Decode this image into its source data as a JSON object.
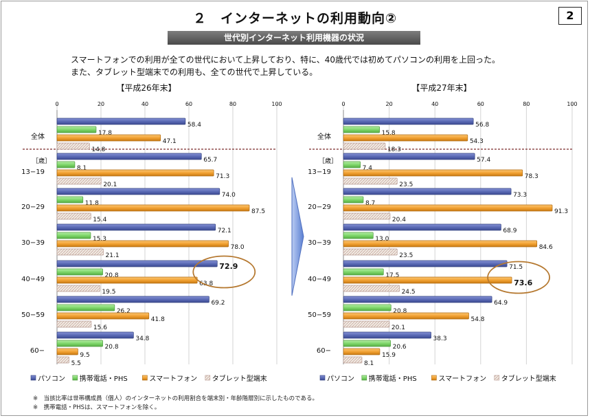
{
  "title": "２　インターネットの利用動向②",
  "page_number": "2",
  "subtitle": "世代別インターネット利用機器の状況",
  "description": [
    "スマートフォンでの利用が全ての世代において上昇しており、特に、40歳代では初めてパソコンの利用を上回った。",
    "また、タブレット型端末での利用も、全ての世代で上昇している。"
  ],
  "notes": [
    "※　当該比率は世帯構成員（個人）のインターネットの利用割合を端末別・年齢階層別に示したものである。",
    "※　携帯電話・PHSは、スマートフォンを除く。"
  ],
  "colors": {
    "pc": "#5b6bb5",
    "mobile": "#7fd66b",
    "smartphone": "#f2a233",
    "tablet": "#e4ddd2",
    "highlight": "#b5782f",
    "arrow": "#6f8fd8"
  },
  "chart_data": [
    {
      "type": "bar",
      "orientation": "horizontal",
      "title": "【平成26年末】",
      "xlim": [
        0,
        100
      ],
      "xticks": [
        0,
        20,
        40,
        60,
        80,
        100
      ],
      "unit_label": "［歳］",
      "categories": [
        "全体",
        "13−19",
        "20−29",
        "30−39",
        "40−49",
        "50−59",
        "60−"
      ],
      "series": [
        {
          "name": "パソコン",
          "values": [
            58.4,
            65.7,
            74.0,
            72.1,
            72.9,
            69.2,
            34.8
          ]
        },
        {
          "name": "携帯電話・PHS",
          "values": [
            17.8,
            8.1,
            11.8,
            15.3,
            20.8,
            26.2,
            20.8
          ]
        },
        {
          "name": "スマートフォン",
          "values": [
            47.1,
            71.3,
            87.5,
            78.0,
            63.8,
            41.8,
            9.5
          ]
        },
        {
          "name": "タブレット型端末",
          "values": [
            14.8,
            20.1,
            15.4,
            21.1,
            19.5,
            15.6,
            5.5
          ]
        }
      ],
      "highlight": {
        "category": "40−49",
        "series": "パソコン",
        "value": 72.9
      }
    },
    {
      "type": "bar",
      "orientation": "horizontal",
      "title": "【平成27年末】",
      "xlim": [
        0,
        100
      ],
      "xticks": [
        0,
        20,
        40,
        60,
        80,
        100
      ],
      "unit_label": "［歳］",
      "categories": [
        "全体",
        "13−19",
        "20−29",
        "30−39",
        "40−49",
        "50−59",
        "60−"
      ],
      "series": [
        {
          "name": "パソコン",
          "values": [
            56.8,
            57.4,
            73.3,
            68.9,
            71.5,
            64.9,
            38.3
          ]
        },
        {
          "name": "携帯電話・PHS",
          "values": [
            15.8,
            7.4,
            8.7,
            13.0,
            17.5,
            20.8,
            20.6
          ]
        },
        {
          "name": "スマートフォン",
          "values": [
            54.3,
            78.3,
            91.3,
            84.6,
            73.6,
            54.8,
            15.9
          ]
        },
        {
          "name": "タブレット型端末",
          "values": [
            18.3,
            23.5,
            20.4,
            23.5,
            24.5,
            20.1,
            8.1
          ]
        }
      ],
      "highlight": {
        "category": "40−49",
        "series": "スマートフォン",
        "value": 73.6
      }
    }
  ]
}
